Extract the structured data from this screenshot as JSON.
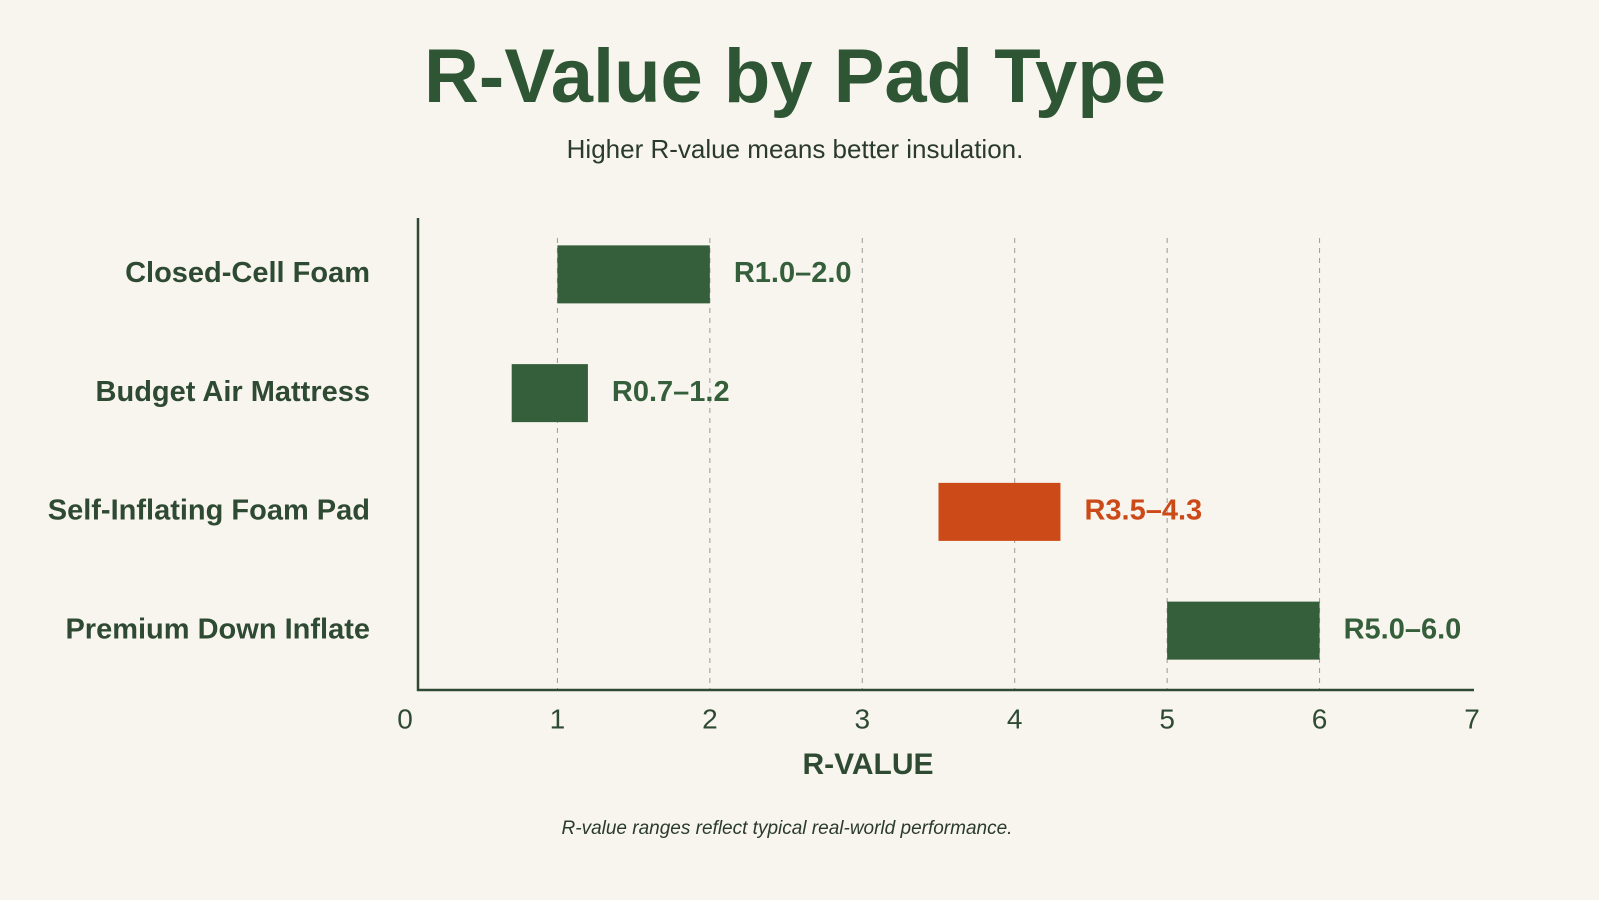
{
  "chart_data": {
    "type": "range-bar",
    "title": "R-Value by Pad Type",
    "subtitle": "Higher R-value means better insulation.",
    "x_label": "R-VALUE",
    "footnote": "R-value ranges reflect typical real-world performance.",
    "categories": [
      "Closed-Cell Foam",
      "Budget Air Mattress",
      "Self-Inflating Foam Pad",
      "Premium Down Inflate"
    ],
    "low": [
      1.0,
      0.7,
      3.5,
      5.0
    ],
    "high": [
      2.0,
      1.2,
      4.3,
      6.0
    ],
    "value_labels": [
      "R1.0–2.0",
      "R0.7–1.2",
      "R3.5–4.3",
      "R5.0–6.0"
    ],
    "colors": [
      "#355e3b",
      "#355e3b",
      "#cc4a17",
      "#355e3b"
    ],
    "xlim": [
      0,
      7
    ],
    "xticks": [
      0,
      1,
      2,
      3,
      4,
      5,
      6,
      7
    ],
    "grid": true
  }
}
